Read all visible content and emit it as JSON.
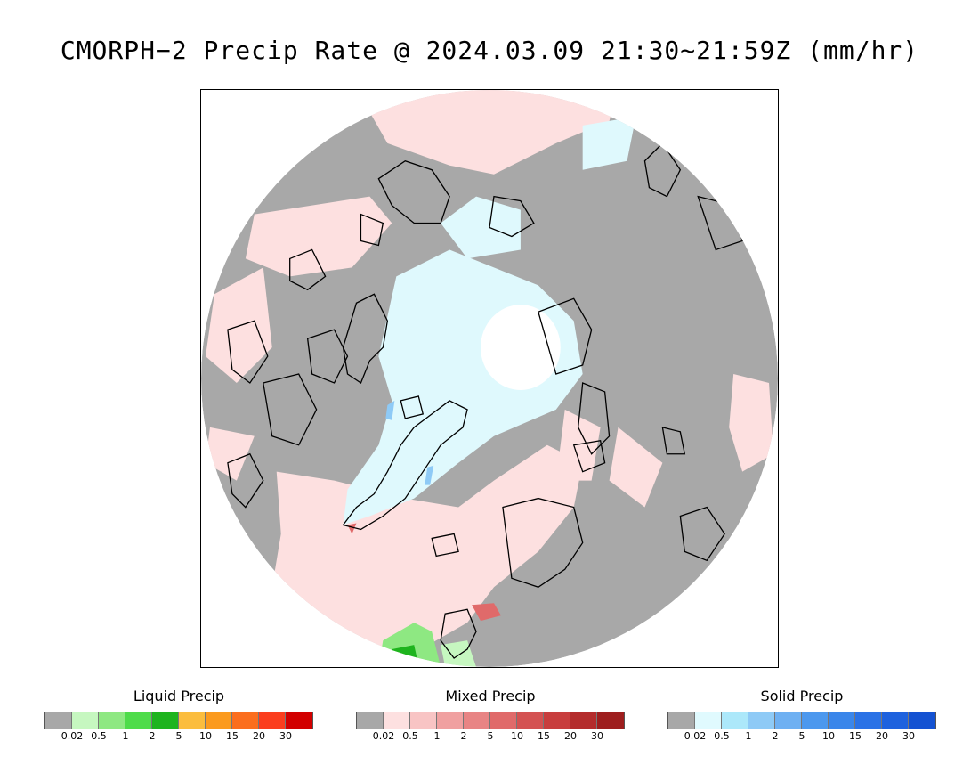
{
  "title": "CMORPH−2 Precip Rate @ 2024.03.09 21:30~21:59Z (mm/hr)",
  "map": {
    "projection": "north-polar-stereographic",
    "no_precip_color": "#a8a8a8",
    "coastline_color": "#000000"
  },
  "legends": [
    {
      "title": "Liquid Precip",
      "colors": [
        "#a8a8a8",
        "#c6f7c0",
        "#8ee882",
        "#4edc4a",
        "#1eb41e",
        "#fbbd3e",
        "#fb9a1e",
        "#fb6e1e",
        "#fb3e1e",
        "#d20000"
      ],
      "ticks": [
        "0.02",
        "0.5",
        "1",
        "2",
        "5",
        "10",
        "15",
        "20",
        "30"
      ]
    },
    {
      "title": "Mixed Precip",
      "colors": [
        "#a8a8a8",
        "#fde0e0",
        "#f8c4c4",
        "#f0a0a0",
        "#e88484",
        "#e06a6a",
        "#d45252",
        "#c83e3e",
        "#b42c2c",
        "#9e1e1e"
      ],
      "ticks": [
        "0.02",
        "0.5",
        "1",
        "2",
        "5",
        "10",
        "15",
        "20",
        "30"
      ]
    },
    {
      "title": "Solid Precip",
      "colors": [
        "#a8a8a8",
        "#e0fafe",
        "#ace8fa",
        "#8ecaf6",
        "#6eb0f2",
        "#4c98ee",
        "#3a86ea",
        "#2a72e6",
        "#1e62de",
        "#1452d2"
      ],
      "ticks": [
        "0.02",
        "0.5",
        "1",
        "2",
        "5",
        "10",
        "15",
        "20",
        "30"
      ]
    }
  ]
}
